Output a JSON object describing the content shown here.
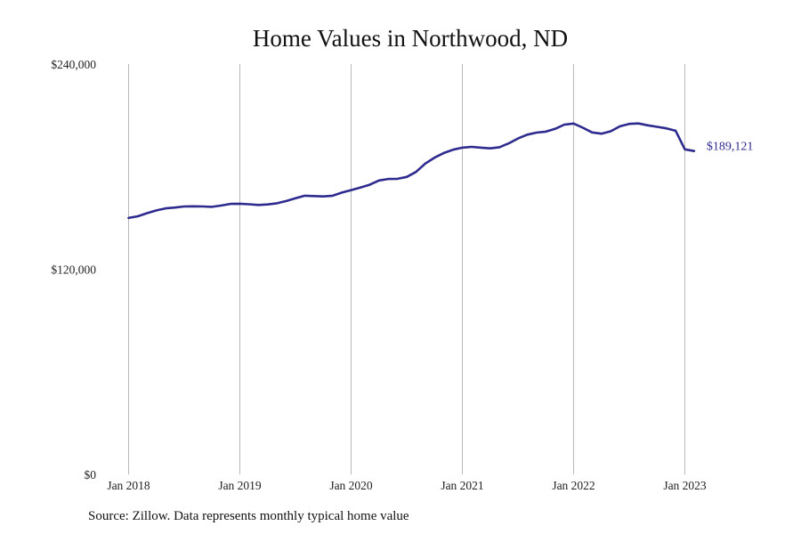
{
  "title": "Home Values in Northwood, ND",
  "source": "Source: Zillow. Data represents monthly typical home value",
  "colors": {
    "line": "#2e2b8f",
    "grid": "#b9b9b9",
    "text": "#222222"
  },
  "chart_data": {
    "type": "line",
    "title": "Home Values in Northwood, ND",
    "xlabel": "",
    "ylabel": "",
    "ylim": [
      0,
      240000
    ],
    "y_ticks": [
      {
        "value": 0,
        "label": "$0"
      },
      {
        "value": 120000,
        "label": "$120,000"
      },
      {
        "value": 240000,
        "label": "$240,000"
      }
    ],
    "x_ticks": [
      {
        "value": "2018-01",
        "label": "Jan 2018"
      },
      {
        "value": "2019-01",
        "label": "Jan 2019"
      },
      {
        "value": "2020-01",
        "label": "Jan 2020"
      },
      {
        "value": "2021-01",
        "label": "Jan 2021"
      },
      {
        "value": "2022-01",
        "label": "Jan 2022"
      },
      {
        "value": "2023-01",
        "label": "Jan 2023"
      }
    ],
    "grid": "vertical",
    "end_label": "$189,121",
    "series": [
      {
        "x": [
          "2018-01",
          "2018-02",
          "2018-03",
          "2018-04",
          "2018-05",
          "2018-06",
          "2018-07",
          "2018-08",
          "2018-09",
          "2018-10",
          "2018-11",
          "2018-12",
          "2019-01",
          "2019-02",
          "2019-03",
          "2019-04",
          "2019-05",
          "2019-06",
          "2019-07",
          "2019-08",
          "2019-09",
          "2019-10",
          "2019-11",
          "2019-12",
          "2020-01",
          "2020-02",
          "2020-03",
          "2020-04",
          "2020-05",
          "2020-06",
          "2020-07",
          "2020-08",
          "2020-09",
          "2020-10",
          "2020-11",
          "2020-12",
          "2021-01",
          "2021-02",
          "2021-03",
          "2021-04",
          "2021-05",
          "2021-06",
          "2021-07",
          "2021-08",
          "2021-09",
          "2021-10",
          "2021-11",
          "2021-12",
          "2022-01",
          "2022-02",
          "2022-03",
          "2022-04",
          "2022-05",
          "2022-06",
          "2022-07",
          "2022-08",
          "2022-09",
          "2022-10",
          "2022-11",
          "2022-12",
          "2023-01",
          "2023-02"
        ],
        "y": [
          150000,
          151000,
          152800,
          154400,
          155600,
          156100,
          156700,
          156800,
          156700,
          156500,
          157300,
          158200,
          158300,
          158000,
          157600,
          157900,
          158600,
          159900,
          161500,
          163000,
          162800,
          162600,
          163000,
          164800,
          166300,
          167800,
          169400,
          171900,
          172800,
          172900,
          174000,
          176900,
          181800,
          185300,
          188000,
          189900,
          191100,
          191600,
          191100,
          190700,
          191400,
          193600,
          196500,
          198700,
          199900,
          200500,
          202100,
          204600,
          205200,
          202800,
          200000,
          199300,
          200700,
          203600,
          205000,
          205300,
          204200,
          203300,
          202400,
          201000,
          190100,
          189121
        ]
      }
    ]
  }
}
